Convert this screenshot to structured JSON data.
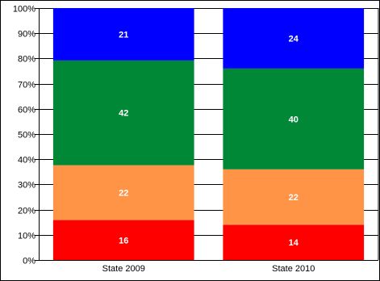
{
  "chart_data": {
    "type": "bar",
    "stacked": true,
    "percent_scale": true,
    "categories": [
      "State 2009",
      "State 2010"
    ],
    "series": [
      {
        "color": "#ff0000",
        "values": [
          16,
          14
        ]
      },
      {
        "color": "#ff9346",
        "values": [
          22,
          22
        ]
      },
      {
        "color": "#008837",
        "values": [
          42,
          40
        ]
      },
      {
        "color": "#0000ff",
        "values": [
          21,
          24
        ]
      }
    ],
    "yticks": [
      "0%",
      "10%",
      "20%",
      "30%",
      "40%",
      "50%",
      "60%",
      "70%",
      "80%",
      "90%",
      "100%"
    ],
    "ylim": [
      0,
      100
    ],
    "grid": true,
    "legend": "none"
  }
}
